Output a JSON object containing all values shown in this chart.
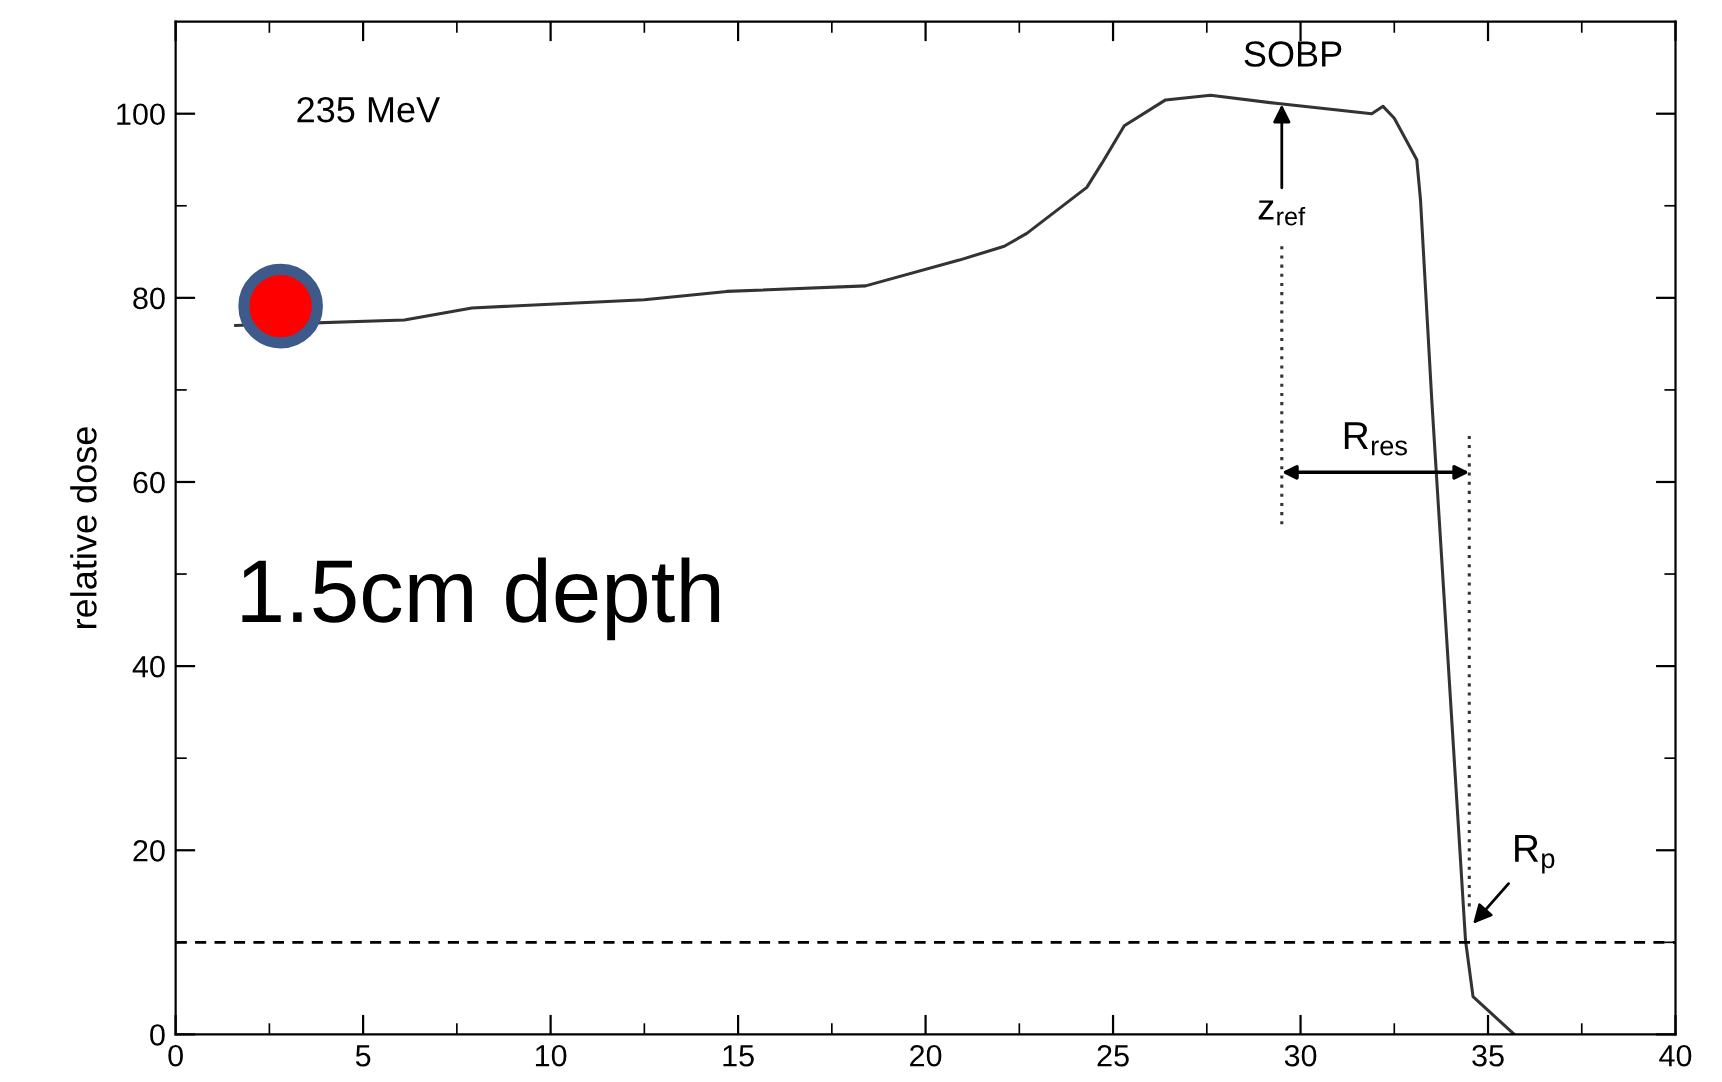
{
  "chart_data": {
    "type": "line",
    "ylabel": "relative dose",
    "xlim": [
      0,
      40
    ],
    "ylim": [
      0,
      110
    ],
    "xticks": [
      0,
      5,
      10,
      15,
      20,
      25,
      30,
      35,
      40
    ],
    "yticks": [
      0,
      20,
      40,
      60,
      80,
      100
    ],
    "grid": false,
    "legend": false,
    "series": [
      {
        "color": "#333333",
        "line_style": "solid",
        "x": [
          1.6,
          6.1,
          7.9,
          12.5,
          14.7,
          18.4,
          20.9,
          22.1,
          22.7,
          24.3,
          24.7,
          25.3,
          26.4,
          27.6,
          29.4,
          31.9,
          32.2,
          32.5,
          33.1,
          33.2,
          33.5,
          34.4,
          34.6,
          35.7
        ],
        "values": [
          77,
          77.6,
          78.9,
          79.8,
          80.7,
          81.3,
          84.1,
          85.6,
          87,
          92,
          94.6,
          98.7,
          101.5,
          102,
          101.1,
          100,
          100.8,
          99.5,
          95,
          90.6,
          68.9,
          10.2,
          4.1,
          0
        ]
      },
      {
        "type": "line",
        "color": "#333333",
        "line_style": "dotted",
        "x": [
          29.5,
          29.5
        ],
        "values": [
          55.4,
          85.9
        ]
      },
      {
        "type": "line",
        "color": "#333333",
        "line_style": "dotted",
        "x": [
          34.5,
          34.5
        ],
        "values": [
          13.9,
          65
        ]
      },
      {
        "type": "scatter",
        "color": "#ff0000",
        "marker": "circle",
        "x": [
          2.8
        ],
        "values": [
          79.1
        ]
      }
    ],
    "ref_lines": [
      {
        "axis": "y",
        "value": 10,
        "color": "#000000",
        "line_style": "dashed"
      }
    ],
    "annotations": [
      "235 MeV",
      "1.5cm depth",
      "SOBP",
      {
        "text": "z$_{ref}$",
        "x": 29.5,
        "y": 101
      },
      "R$_{res}$",
      {
        "text": "R$_{p}$",
        "x": 34.6,
        "y": 12
      }
    ]
  }
}
